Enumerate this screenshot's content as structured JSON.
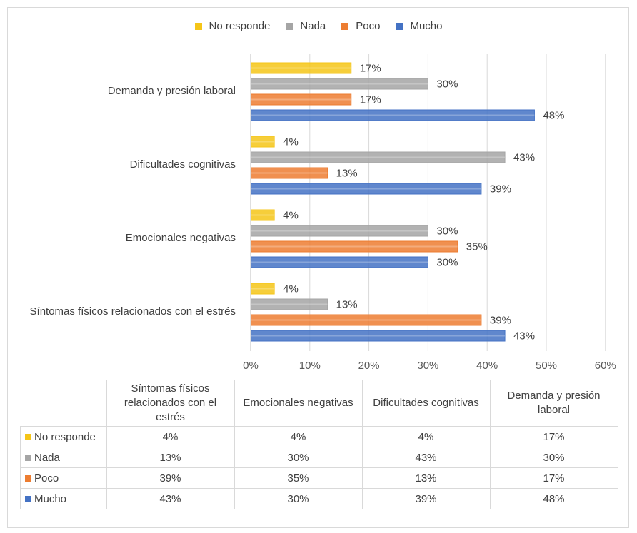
{
  "chart_data": {
    "type": "bar",
    "orientation": "horizontal",
    "categories": [
      "Demanda y presión laboral",
      "Dificultades cognitivas",
      "Emocionales negativas",
      "Síntomas físicos relacionados con el estrés"
    ],
    "series": [
      {
        "name": "No responde",
        "color": "#f5c518",
        "values": [
          17,
          4,
          4,
          4
        ]
      },
      {
        "name": "Nada",
        "color": "#a5a5a5",
        "values": [
          30,
          43,
          30,
          13
        ]
      },
      {
        "name": "Poco",
        "color": "#ed7d31",
        "values": [
          17,
          13,
          35,
          39
        ]
      },
      {
        "name": "Mucho",
        "color": "#4472c4",
        "values": [
          48,
          39,
          30,
          43
        ]
      }
    ],
    "x_ticks": [
      "0%",
      "10%",
      "20%",
      "30%",
      "40%",
      "50%",
      "60%"
    ],
    "xlim": [
      0,
      60
    ],
    "value_suffix": "%",
    "grid": true,
    "legend_position": "top"
  },
  "legend": [
    "No responde",
    "Nada",
    "Poco",
    "Mucho"
  ],
  "table": {
    "headers": [
      "Síntomas físicos relacionados con el estrés",
      "Emocionales negativas",
      "Dificultades cognitivas",
      "Demanda y presión laboral"
    ],
    "rows": [
      {
        "label": "No responde",
        "color": "#f5c518",
        "cells": [
          "4%",
          "4%",
          "4%",
          "17%"
        ]
      },
      {
        "label": "Nada",
        "color": "#a5a5a5",
        "cells": [
          "13%",
          "30%",
          "43%",
          "30%"
        ]
      },
      {
        "label": "Poco",
        "color": "#ed7d31",
        "cells": [
          "39%",
          "35%",
          "13%",
          "17%"
        ]
      },
      {
        "label": "Mucho",
        "color": "#4472c4",
        "cells": [
          "43%",
          "30%",
          "39%",
          "48%"
        ]
      }
    ]
  }
}
